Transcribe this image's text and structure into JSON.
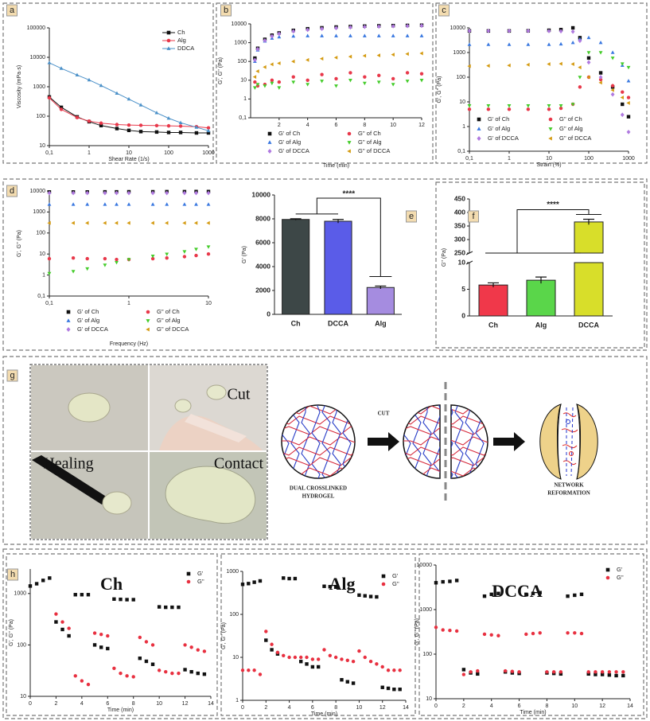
{
  "chart_data": [
    {
      "type": "line",
      "panel_label": "a",
      "xlabel": "Shear Rate (1/s)",
      "ylabel": "Viscosity (mPa·s)",
      "xscale": "log",
      "yscale": "log",
      "xlim": [
        0.1,
        1000
      ],
      "ylim": [
        10,
        100000
      ],
      "xticks": [
        {
          "value": 0.1,
          "label": "0,1"
        },
        1,
        10,
        100,
        1000
      ],
      "yticks": [
        10,
        100,
        1000,
        10000,
        100000
      ],
      "legend": "upper right",
      "x": [
        0.1,
        0.2,
        0.5,
        1,
        2,
        5,
        10,
        20,
        50,
        100,
        200,
        500,
        1000
      ],
      "series": [
        {
          "name": "Ch",
          "color": "#111111",
          "marker": "square",
          "values": [
            450,
            200,
            95,
            65,
            48,
            38,
            33,
            30,
            29,
            28,
            28,
            27,
            27
          ]
        },
        {
          "name": "Alg",
          "color": "#e8384a",
          "marker": "circle",
          "values": [
            420,
            170,
            90,
            68,
            58,
            52,
            50,
            49,
            48,
            47,
            46,
            44,
            40
          ]
        },
        {
          "name": "DDCA",
          "color": "#4a90c8",
          "marker": "tri-up",
          "values": [
            6500,
            4200,
            2500,
            1700,
            1100,
            600,
            380,
            240,
            130,
            85,
            60,
            42,
            32
          ]
        }
      ]
    },
    {
      "type": "scatter",
      "panel_label": "b",
      "xlabel": "Time (min)",
      "ylabel": "G', G'' (Pa)",
      "xscale": "linear",
      "yscale": "log",
      "xlim": [
        0,
        12
      ],
      "ylim": [
        0.1,
        10000
      ],
      "xticks": [
        2,
        4,
        6,
        8,
        10,
        12
      ],
      "yticks": [
        {
          "value": 0.1,
          "label": "0,1"
        },
        1,
        10,
        100,
        1000,
        10000
      ],
      "legend": "bottom",
      "x": [
        0.3,
        0.5,
        1,
        1.5,
        2,
        3,
        4,
        5,
        6,
        7,
        8,
        9,
        10,
        11,
        12
      ],
      "series": [
        {
          "name": "G' of Ch",
          "color": "#111111",
          "marker": "square",
          "values": [
            150,
            500,
            1500,
            2500,
            3300,
            4500,
            5500,
            6200,
            6800,
            7200,
            7600,
            7900,
            8100,
            8300,
            8500
          ]
        },
        {
          "name": "G'' of Ch",
          "color": "#e8384a",
          "marker": "circle",
          "values": [
            8,
            5,
            6,
            10,
            8,
            15,
            10,
            20,
            12,
            25,
            15,
            18,
            12,
            25,
            22
          ]
        },
        {
          "name": "G' of Alg",
          "color": "#3a78e0",
          "marker": "tri-up",
          "values": [
            100,
            400,
            1200,
            1700,
            2000,
            2200,
            2300,
            2300,
            2300,
            2300,
            2300,
            2300,
            2300,
            2300,
            2300
          ]
        },
        {
          "name": "G'' of Alg",
          "color": "#44cc2a",
          "marker": "tri-down",
          "values": [
            4,
            6,
            5,
            7,
            4,
            8,
            6,
            9,
            5,
            10,
            7,
            8,
            6,
            9,
            10
          ]
        },
        {
          "name": "G' of DCCA",
          "color": "#b07ae0",
          "marker": "diamond",
          "values": [
            120,
            450,
            1300,
            2200,
            3000,
            4000,
            4800,
            5500,
            6000,
            6500,
            6900,
            7200,
            7500,
            7700,
            7900
          ]
        },
        {
          "name": "G'' of DCCA",
          "color": "#d49a10",
          "marker": "tri-left",
          "values": [
            15,
            30,
            50,
            70,
            80,
            100,
            120,
            140,
            160,
            180,
            200,
            210,
            230,
            250,
            270
          ]
        }
      ]
    },
    {
      "type": "scatter",
      "panel_label": "c",
      "xlabel": "Strain (%)",
      "ylabel": "G', G'' (Pa)",
      "xscale": "log",
      "yscale": "log",
      "xlim": [
        0.1,
        1000
      ],
      "ylim": [
        0.1,
        10000
      ],
      "xticks": [
        {
          "value": 0.1,
          "label": "0,1"
        },
        1,
        10,
        100,
        1000
      ],
      "yticks": [
        {
          "value": 0.1,
          "label": "0,1"
        },
        1,
        10,
        100,
        1000,
        10000
      ],
      "legend": "lower left",
      "x": [
        0.1,
        0.3,
        1,
        3,
        10,
        20,
        40,
        60,
        100,
        200,
        400,
        700,
        1000
      ],
      "series": [
        {
          "name": "G' of Ch",
          "color": "#111111",
          "marker": "square",
          "values": [
            7500,
            7500,
            7500,
            7600,
            8000,
            8500,
            10000,
            4000,
            600,
            150,
            40,
            8,
            2.5
          ]
        },
        {
          "name": "G'' of Ch",
          "color": "#e8384a",
          "marker": "circle",
          "values": [
            5,
            5,
            5,
            5,
            5,
            5.5,
            8,
            40,
            100,
            80,
            45,
            25,
            15
          ]
        },
        {
          "name": "G' of Alg",
          "color": "#3a78e0",
          "marker": "tri-up",
          "values": [
            2100,
            2100,
            2100,
            2100,
            2100,
            2200,
            2500,
            3500,
            4000,
            2500,
            1000,
            300,
            70
          ]
        },
        {
          "name": "G'' of Alg",
          "color": "#44cc2a",
          "marker": "tri-down",
          "values": [
            7,
            7,
            7,
            7,
            7,
            7,
            8,
            100,
            1000,
            1000,
            600,
            350,
            250
          ]
        },
        {
          "name": "G' of DCCA",
          "color": "#b07ae0",
          "marker": "diamond",
          "values": [
            7500,
            7500,
            7500,
            7500,
            7400,
            7300,
            7000,
            3000,
            400,
            100,
            20,
            3,
            0.6
          ]
        },
        {
          "name": "G'' of DCCA",
          "color": "#d49a10",
          "marker": "tri-left",
          "values": [
            280,
            290,
            300,
            320,
            340,
            350,
            340,
            250,
            100,
            60,
            30,
            15,
            9
          ]
        }
      ]
    },
    {
      "type": "scatter",
      "panel_label": "d",
      "xlabel": "Frequency (Hz)",
      "ylabel": "G', G'' (Pa)",
      "xscale": "log",
      "yscale": "log",
      "xlim": [
        0.1,
        10
      ],
      "ylim": [
        0.1,
        10000
      ],
      "xticks": [
        {
          "value": 0.1,
          "label": "0,1"
        },
        1,
        10
      ],
      "yticks": [
        {
          "value": 0.1,
          "label": "0,1"
        },
        1,
        10,
        100,
        1000,
        10000
      ],
      "legend": "bottom",
      "x": [
        0.1,
        0.2,
        0.3,
        0.5,
        0.7,
        1,
        2,
        3,
        5,
        7,
        10
      ],
      "series": [
        {
          "name": "G' of Ch",
          "color": "#111111",
          "marker": "square",
          "values": [
            9000,
            9000,
            9000,
            9100,
            9100,
            9200,
            9200,
            9300,
            9300,
            9400,
            9400
          ]
        },
        {
          "name": "G'' of Ch",
          "color": "#e8384a",
          "marker": "circle",
          "values": [
            6,
            6.5,
            6,
            6,
            5.5,
            5.5,
            6,
            6.5,
            7.5,
            8.5,
            10
          ]
        },
        {
          "name": "G' of Alg",
          "color": "#3a78e0",
          "marker": "tri-up",
          "values": [
            2300,
            2300,
            2300,
            2300,
            2300,
            2300,
            2300,
            2300,
            2300,
            2300,
            2300
          ]
        },
        {
          "name": "G'' of Alg",
          "color": "#44cc2a",
          "marker": "tri-down",
          "values": [
            1.2,
            1.5,
            2,
            3,
            4,
            5.5,
            8,
            10,
            13,
            17,
            22
          ]
        },
        {
          "name": "G' of DCCA",
          "color": "#b07ae0",
          "marker": "diamond",
          "values": [
            8000,
            8000,
            8000,
            8000,
            8000,
            8000,
            8000,
            8000,
            8000,
            8000,
            8000
          ]
        },
        {
          "name": "G'' of DCCA",
          "color": "#d49a10",
          "marker": "tri-left",
          "values": [
            300,
            300,
            300,
            300,
            300,
            300,
            300,
            300,
            300,
            300,
            300
          ]
        }
      ]
    },
    {
      "type": "bar",
      "panel_label": "e",
      "ylabel": "G' (Pa)",
      "categories": [
        "Ch",
        "DCCA",
        "Alg"
      ],
      "values": [
        7950,
        7800,
        2250
      ],
      "errors": [
        60,
        150,
        120
      ],
      "colors": [
        "#3d4747",
        "#5a5ce8",
        "#a58ce0"
      ],
      "ylim": [
        0,
        10000
      ],
      "yticks": [
        0,
        2000,
        4000,
        6000,
        8000,
        10000
      ],
      "significance": "****"
    },
    {
      "type": "broken_bar",
      "panel_label": "f",
      "ylabel": "G'' (Pa)",
      "categories": [
        "Ch",
        "Alg",
        "DCCA"
      ],
      "values": [
        5.8,
        6.7,
        365
      ],
      "errors": [
        0.4,
        0.6,
        10
      ],
      "colors": [
        "#f0384a",
        "#5ad64a",
        "#d8de2a"
      ],
      "ylim_lower": [
        0,
        10
      ],
      "yticks_lower": [
        0,
        5,
        10
      ],
      "ylim_upper": [
        250,
        450
      ],
      "yticks_upper": [
        250,
        300,
        350,
        400,
        450
      ],
      "significance": "****"
    },
    {
      "type": "scatter",
      "panel_label": "h",
      "title": "Ch",
      "xlabel": "Time (min)",
      "ylabel": "G', G'' (Pa)",
      "xscale": "linear",
      "yscale": "log",
      "xlim": [
        0,
        14
      ],
      "ylim": [
        10,
        3000
      ],
      "xticks": [
        0,
        2,
        4,
        6,
        8,
        10,
        12,
        14
      ],
      "yticks": [
        10,
        100,
        1000
      ],
      "legend": "upper right",
      "x": [
        0,
        0.5,
        1,
        1.5,
        2,
        2.5,
        3,
        3.5,
        4,
        4.5,
        5,
        5.5,
        6,
        6.5,
        7,
        7.5,
        8,
        8.5,
        9,
        9.5,
        10,
        10.5,
        11,
        11.5,
        12,
        12.5,
        13,
        13.5
      ],
      "series": [
        {
          "name": "G'",
          "color": "#111111",
          "marker": "square",
          "values": [
            1400,
            1550,
            1800,
            2000,
            280,
            200,
            150,
            950,
            950,
            950,
            100,
            90,
            85,
            780,
            770,
            760,
            760,
            55,
            48,
            42,
            550,
            540,
            540,
            540,
            33,
            30,
            28,
            27
          ]
        },
        {
          "name": "G''",
          "color": "#e83040",
          "marker": "circle",
          "values": [
            null,
            null,
            null,
            null,
            400,
            280,
            210,
            25,
            20,
            17,
            170,
            160,
            150,
            35,
            28,
            25,
            24,
            140,
            115,
            100,
            32,
            30,
            28,
            28,
            100,
            90,
            80,
            75
          ]
        }
      ]
    },
    {
      "type": "scatter",
      "title": "Alg",
      "xlabel": "Time (min)",
      "ylabel": "G', G'' (Pa)",
      "xscale": "linear",
      "yscale": "log",
      "xlim": [
        0,
        14
      ],
      "ylim": [
        1,
        1000
      ],
      "xticks": [
        0,
        2,
        4,
        6,
        8,
        10,
        12,
        14
      ],
      "yticks": [
        1,
        10,
        100,
        1000
      ],
      "legend": "upper right",
      "x": [
        0,
        0.5,
        1,
        1.5,
        2,
        2.5,
        3,
        3.5,
        4,
        4.5,
        5,
        5.5,
        6,
        6.5,
        7,
        7.5,
        8,
        8.5,
        9,
        9.5,
        10,
        10.5,
        11,
        11.5,
        12,
        12.5,
        13,
        13.5
      ],
      "series": [
        {
          "name": "G'",
          "color": "#111111",
          "marker": "square",
          "values": [
            500,
            520,
            560,
            600,
            25,
            15,
            12,
            700,
            680,
            680,
            8,
            7,
            6,
            6,
            450,
            440,
            430,
            3,
            2.7,
            2.5,
            280,
            270,
            260,
            255,
            2,
            1.9,
            1.8,
            1.8
          ]
        },
        {
          "name": "G''",
          "color": "#e83040",
          "marker": "circle",
          "values": [
            5,
            5,
            5,
            4,
            40,
            20,
            13,
            11,
            10,
            10,
            10,
            10,
            9,
            9,
            15,
            11,
            10,
            9,
            8.5,
            8,
            14,
            10,
            8,
            7,
            6,
            5,
            5,
            5
          ]
        }
      ]
    },
    {
      "type": "scatter",
      "title": "DCCA",
      "xlabel": "Time (min)",
      "ylabel": "G', G'' (Pa)",
      "xscale": "linear",
      "yscale": "log",
      "xlim": [
        0,
        14
      ],
      "ylim": [
        10,
        10000
      ],
      "xticks": [
        0,
        2,
        4,
        6,
        8,
        10,
        12,
        14
      ],
      "yticks": [
        10,
        100,
        1000,
        10000
      ],
      "legend": "upper right",
      "x": [
        0,
        0.5,
        1,
        1.5,
        2,
        2.5,
        3,
        3.5,
        4,
        4.5,
        5,
        5.5,
        6,
        6.5,
        7,
        7.5,
        8,
        8.5,
        9,
        9.5,
        10,
        10.5,
        11,
        11.5,
        12,
        12.5,
        13,
        13.5
      ],
      "series": [
        {
          "name": "G'",
          "color": "#111111",
          "marker": "square",
          "values": [
            4000,
            4200,
            4300,
            4500,
            45,
            38,
            36,
            2000,
            2200,
            2300,
            40,
            38,
            37,
            2200,
            2300,
            2400,
            38,
            37,
            36,
            2000,
            2100,
            2200,
            36,
            35,
            35,
            34,
            33,
            33
          ]
        },
        {
          "name": "G''",
          "color": "#e83040",
          "marker": "circle",
          "values": [
            400,
            350,
            340,
            330,
            35,
            40,
            42,
            280,
            270,
            260,
            42,
            41,
            40,
            280,
            290,
            300,
            40,
            40,
            40,
            300,
            300,
            290,
            40,
            40,
            40,
            40,
            40,
            40
          ]
        }
      ]
    }
  ],
  "panel_g": {
    "label": "g",
    "photos": [
      "Cut",
      "Healing",
      "Contact"
    ],
    "cut": "CUT",
    "left_caption": [
      "DUAL CROSSLINKED",
      "HYDROGEL"
    ],
    "right_caption": [
      "NETWORK",
      "REFORMATION"
    ]
  }
}
